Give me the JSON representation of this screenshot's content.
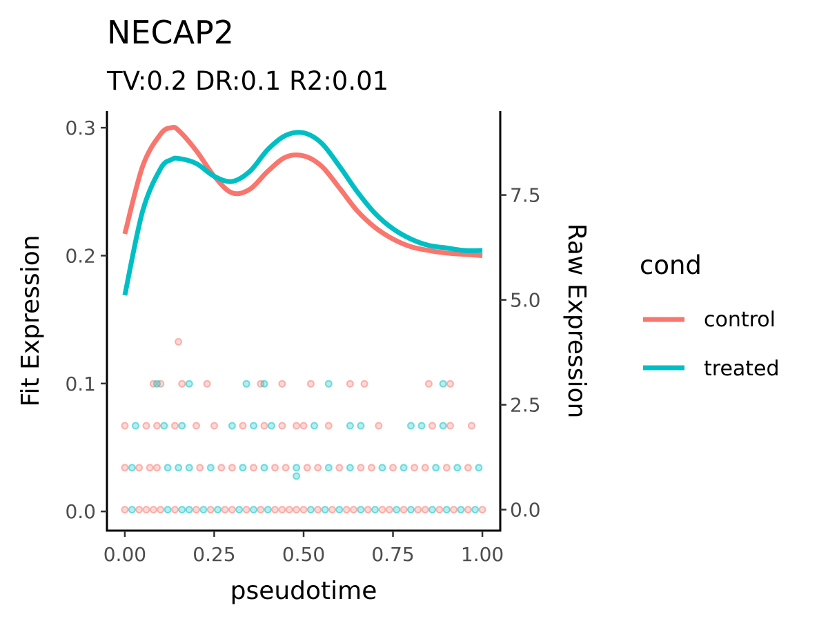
{
  "chart_data": {
    "type": "line",
    "title": "NECAP2",
    "subtitle": "TV:0.2 DR:0.1 R2:0.01",
    "xlabel": "pseudotime",
    "ylabel": "Fit Expression",
    "y2label": "Raw Expression",
    "xlim": [
      -0.05,
      1.05
    ],
    "ylim": [
      -0.015,
      0.313
    ],
    "y2lim": [
      -0.5,
      9.5
    ],
    "grid": false,
    "x_ticks": [
      0.0,
      0.25,
      0.5,
      0.75,
      1.0
    ],
    "x_tick_labels": [
      "0.00",
      "0.25",
      "0.50",
      "0.75",
      "1.00"
    ],
    "y_ticks": [
      0.0,
      0.1,
      0.2,
      0.3
    ],
    "y_tick_labels": [
      "0.0",
      "0.1",
      "0.2",
      "0.3"
    ],
    "y2_ticks": [
      0.0,
      2.5,
      5.0,
      7.5
    ],
    "y2_tick_labels": [
      "0.0",
      "2.5",
      "5.0",
      "7.5"
    ],
    "legend": {
      "title": "cond",
      "position": "right",
      "entries": [
        {
          "label": "control",
          "color": "#F8766D"
        },
        {
          "label": "treated",
          "color": "#00BFC4"
        }
      ]
    },
    "x": [
      0.0,
      0.05,
      0.1,
      0.13,
      0.15,
      0.2,
      0.25,
      0.3,
      0.35,
      0.4,
      0.45,
      0.5,
      0.55,
      0.6,
      0.65,
      0.7,
      0.75,
      0.8,
      0.85,
      0.9,
      0.95,
      1.0
    ],
    "series": [
      {
        "name": "control",
        "color": "#F8766D",
        "values": [
          0.217,
          0.27,
          0.295,
          0.3,
          0.298,
          0.282,
          0.262,
          0.249,
          0.252,
          0.266,
          0.277,
          0.278,
          0.27,
          0.253,
          0.235,
          0.222,
          0.213,
          0.207,
          0.204,
          0.202,
          0.201,
          0.2
        ]
      },
      {
        "name": "treated",
        "color": "#00BFC4",
        "values": [
          0.169,
          0.235,
          0.268,
          0.275,
          0.276,
          0.272,
          0.262,
          0.258,
          0.266,
          0.283,
          0.294,
          0.296,
          0.288,
          0.27,
          0.25,
          0.233,
          0.221,
          0.213,
          0.208,
          0.206,
          0.204,
          0.204
        ]
      }
    ],
    "raw_points": [
      {
        "cond": "control",
        "x": 0.15,
        "y": 4.0
      },
      {
        "cond": "control",
        "x": 0.08,
        "y": 3.0
      },
      {
        "cond": "control",
        "x": 0.1,
        "y": 3.0
      },
      {
        "cond": "treated",
        "x": 0.09,
        "y": 3.0
      },
      {
        "cond": "control",
        "x": 0.16,
        "y": 3.0
      },
      {
        "cond": "treated",
        "x": 0.18,
        "y": 3.0
      },
      {
        "cond": "control",
        "x": 0.23,
        "y": 3.0
      },
      {
        "cond": "treated",
        "x": 0.34,
        "y": 3.0
      },
      {
        "cond": "control",
        "x": 0.38,
        "y": 3.0
      },
      {
        "cond": "treated",
        "x": 0.39,
        "y": 3.0
      },
      {
        "cond": "control",
        "x": 0.44,
        "y": 3.0
      },
      {
        "cond": "control",
        "x": 0.52,
        "y": 3.0
      },
      {
        "cond": "treated",
        "x": 0.57,
        "y": 3.0
      },
      {
        "cond": "control",
        "x": 0.63,
        "y": 3.0
      },
      {
        "cond": "control",
        "x": 0.67,
        "y": 3.0
      },
      {
        "cond": "control",
        "x": 0.85,
        "y": 3.0
      },
      {
        "cond": "treated",
        "x": 0.89,
        "y": 3.0
      },
      {
        "cond": "control",
        "x": 0.91,
        "y": 3.0
      },
      {
        "cond": "control",
        "x": 0.0,
        "y": 2.0
      },
      {
        "cond": "treated",
        "x": 0.03,
        "y": 2.0
      },
      {
        "cond": "control",
        "x": 0.06,
        "y": 2.0
      },
      {
        "cond": "control",
        "x": 0.09,
        "y": 2.0
      },
      {
        "cond": "treated",
        "x": 0.11,
        "y": 2.0
      },
      {
        "cond": "control",
        "x": 0.14,
        "y": 2.0
      },
      {
        "cond": "treated",
        "x": 0.16,
        "y": 2.0
      },
      {
        "cond": "control",
        "x": 0.2,
        "y": 2.0
      },
      {
        "cond": "control",
        "x": 0.25,
        "y": 2.0
      },
      {
        "cond": "treated",
        "x": 0.3,
        "y": 2.0
      },
      {
        "cond": "control",
        "x": 0.33,
        "y": 2.0
      },
      {
        "cond": "treated",
        "x": 0.36,
        "y": 2.0
      },
      {
        "cond": "control",
        "x": 0.39,
        "y": 2.0
      },
      {
        "cond": "treated",
        "x": 0.41,
        "y": 2.0
      },
      {
        "cond": "control",
        "x": 0.44,
        "y": 2.0
      },
      {
        "cond": "control",
        "x": 0.48,
        "y": 2.0
      },
      {
        "cond": "control",
        "x": 0.5,
        "y": 2.0
      },
      {
        "cond": "treated",
        "x": 0.53,
        "y": 2.0
      },
      {
        "cond": "control",
        "x": 0.57,
        "y": 2.0
      },
      {
        "cond": "treated",
        "x": 0.63,
        "y": 2.0
      },
      {
        "cond": "treated",
        "x": 0.66,
        "y": 2.0
      },
      {
        "cond": "control",
        "x": 0.71,
        "y": 2.0
      },
      {
        "cond": "treated",
        "x": 0.8,
        "y": 2.0
      },
      {
        "cond": "treated",
        "x": 0.83,
        "y": 2.0
      },
      {
        "cond": "control",
        "x": 0.86,
        "y": 2.0
      },
      {
        "cond": "treated",
        "x": 0.89,
        "y": 2.0
      },
      {
        "cond": "control",
        "x": 0.91,
        "y": 2.0
      },
      {
        "cond": "control",
        "x": 0.97,
        "y": 2.0
      },
      {
        "cond": "treated",
        "x": 0.48,
        "y": 0.8
      },
      {
        "cond": "control",
        "x": 0.0,
        "y": 1.0
      },
      {
        "cond": "treated",
        "x": 0.02,
        "y": 1.0
      },
      {
        "cond": "control",
        "x": 0.04,
        "y": 1.0
      },
      {
        "cond": "control",
        "x": 0.07,
        "y": 1.0
      },
      {
        "cond": "control",
        "x": 0.09,
        "y": 1.0
      },
      {
        "cond": "treated",
        "x": 0.12,
        "y": 1.0
      },
      {
        "cond": "treated",
        "x": 0.15,
        "y": 1.0
      },
      {
        "cond": "treated",
        "x": 0.18,
        "y": 1.0
      },
      {
        "cond": "control",
        "x": 0.21,
        "y": 1.0
      },
      {
        "cond": "treated",
        "x": 0.24,
        "y": 1.0
      },
      {
        "cond": "control",
        "x": 0.27,
        "y": 1.0
      },
      {
        "cond": "control",
        "x": 0.3,
        "y": 1.0
      },
      {
        "cond": "treated",
        "x": 0.33,
        "y": 1.0
      },
      {
        "cond": "control",
        "x": 0.36,
        "y": 1.0
      },
      {
        "cond": "treated",
        "x": 0.39,
        "y": 1.0
      },
      {
        "cond": "control",
        "x": 0.42,
        "y": 1.0
      },
      {
        "cond": "control",
        "x": 0.45,
        "y": 1.0
      },
      {
        "cond": "treated",
        "x": 0.48,
        "y": 1.0
      },
      {
        "cond": "control",
        "x": 0.51,
        "y": 1.0
      },
      {
        "cond": "control",
        "x": 0.54,
        "y": 1.0
      },
      {
        "cond": "treated",
        "x": 0.57,
        "y": 1.0
      },
      {
        "cond": "control",
        "x": 0.6,
        "y": 1.0
      },
      {
        "cond": "treated",
        "x": 0.63,
        "y": 1.0
      },
      {
        "cond": "control",
        "x": 0.66,
        "y": 1.0
      },
      {
        "cond": "control",
        "x": 0.69,
        "y": 1.0
      },
      {
        "cond": "treated",
        "x": 0.72,
        "y": 1.0
      },
      {
        "cond": "control",
        "x": 0.75,
        "y": 1.0
      },
      {
        "cond": "treated",
        "x": 0.78,
        "y": 1.0
      },
      {
        "cond": "control",
        "x": 0.81,
        "y": 1.0
      },
      {
        "cond": "control",
        "x": 0.84,
        "y": 1.0
      },
      {
        "cond": "treated",
        "x": 0.87,
        "y": 1.0
      },
      {
        "cond": "control",
        "x": 0.9,
        "y": 1.0
      },
      {
        "cond": "treated",
        "x": 0.93,
        "y": 1.0
      },
      {
        "cond": "control",
        "x": 0.96,
        "y": 1.0
      },
      {
        "cond": "treated",
        "x": 0.99,
        "y": 1.0
      },
      {
        "cond": "control",
        "x": 0.0,
        "y": 0.0
      },
      {
        "cond": "treated",
        "x": 0.02,
        "y": 0.0
      },
      {
        "cond": "control",
        "x": 0.04,
        "y": 0.0
      },
      {
        "cond": "control",
        "x": 0.06,
        "y": 0.0
      },
      {
        "cond": "control",
        "x": 0.08,
        "y": 0.0
      },
      {
        "cond": "control",
        "x": 0.1,
        "y": 0.0
      },
      {
        "cond": "treated",
        "x": 0.12,
        "y": 0.0
      },
      {
        "cond": "control",
        "x": 0.14,
        "y": 0.0
      },
      {
        "cond": "treated",
        "x": 0.16,
        "y": 0.0
      },
      {
        "cond": "treated",
        "x": 0.18,
        "y": 0.0
      },
      {
        "cond": "control",
        "x": 0.2,
        "y": 0.0
      },
      {
        "cond": "treated",
        "x": 0.22,
        "y": 0.0
      },
      {
        "cond": "control",
        "x": 0.24,
        "y": 0.0
      },
      {
        "cond": "treated",
        "x": 0.26,
        "y": 0.0
      },
      {
        "cond": "control",
        "x": 0.28,
        "y": 0.0
      },
      {
        "cond": "control",
        "x": 0.3,
        "y": 0.0
      },
      {
        "cond": "treated",
        "x": 0.32,
        "y": 0.0
      },
      {
        "cond": "control",
        "x": 0.34,
        "y": 0.0
      },
      {
        "cond": "treated",
        "x": 0.36,
        "y": 0.0
      },
      {
        "cond": "control",
        "x": 0.38,
        "y": 0.0
      },
      {
        "cond": "treated",
        "x": 0.4,
        "y": 0.0
      },
      {
        "cond": "control",
        "x": 0.42,
        "y": 0.0
      },
      {
        "cond": "control",
        "x": 0.44,
        "y": 0.0
      },
      {
        "cond": "control",
        "x": 0.46,
        "y": 0.0
      },
      {
        "cond": "control",
        "x": 0.48,
        "y": 0.0
      },
      {
        "cond": "control",
        "x": 0.5,
        "y": 0.0
      },
      {
        "cond": "treated",
        "x": 0.52,
        "y": 0.0
      },
      {
        "cond": "control",
        "x": 0.54,
        "y": 0.0
      },
      {
        "cond": "treated",
        "x": 0.56,
        "y": 0.0
      },
      {
        "cond": "control",
        "x": 0.58,
        "y": 0.0
      },
      {
        "cond": "treated",
        "x": 0.6,
        "y": 0.0
      },
      {
        "cond": "control",
        "x": 0.62,
        "y": 0.0
      },
      {
        "cond": "control",
        "x": 0.64,
        "y": 0.0
      },
      {
        "cond": "treated",
        "x": 0.66,
        "y": 0.0
      },
      {
        "cond": "control",
        "x": 0.68,
        "y": 0.0
      },
      {
        "cond": "treated",
        "x": 0.7,
        "y": 0.0
      },
      {
        "cond": "control",
        "x": 0.72,
        "y": 0.0
      },
      {
        "cond": "control",
        "x": 0.74,
        "y": 0.0
      },
      {
        "cond": "treated",
        "x": 0.76,
        "y": 0.0
      },
      {
        "cond": "control",
        "x": 0.78,
        "y": 0.0
      },
      {
        "cond": "treated",
        "x": 0.8,
        "y": 0.0
      },
      {
        "cond": "control",
        "x": 0.82,
        "y": 0.0
      },
      {
        "cond": "control",
        "x": 0.84,
        "y": 0.0
      },
      {
        "cond": "treated",
        "x": 0.86,
        "y": 0.0
      },
      {
        "cond": "control",
        "x": 0.88,
        "y": 0.0
      },
      {
        "cond": "treated",
        "x": 0.9,
        "y": 0.0
      },
      {
        "cond": "control",
        "x": 0.92,
        "y": 0.0
      },
      {
        "cond": "treated",
        "x": 0.94,
        "y": 0.0
      },
      {
        "cond": "control",
        "x": 0.96,
        "y": 0.0
      },
      {
        "cond": "treated",
        "x": 0.98,
        "y": 0.0
      },
      {
        "cond": "control",
        "x": 1.0,
        "y": 0.0
      }
    ]
  }
}
